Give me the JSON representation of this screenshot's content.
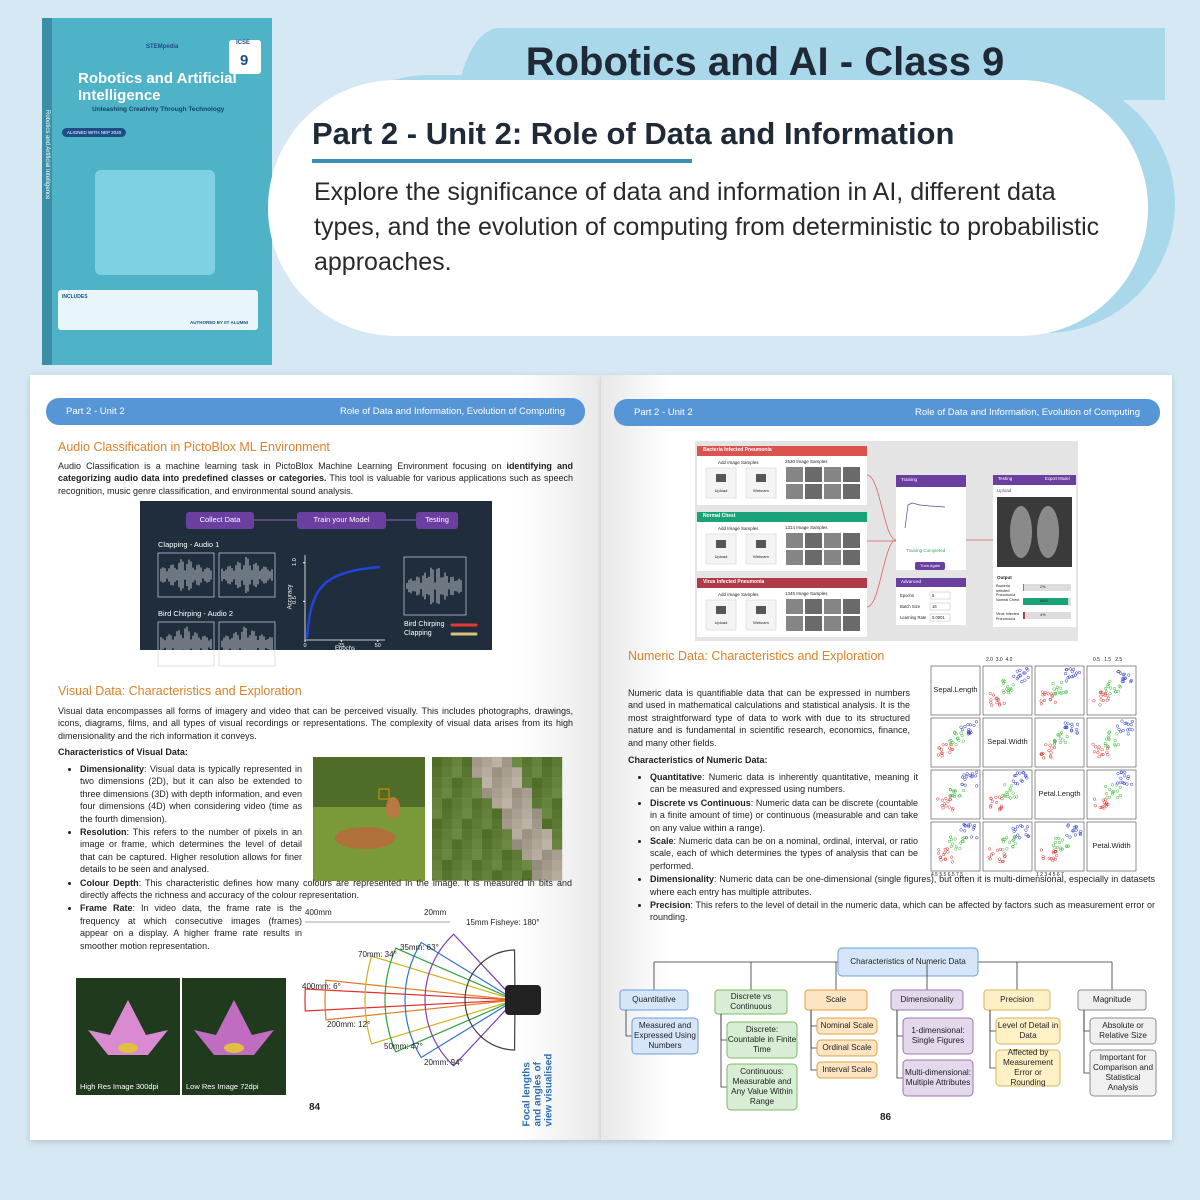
{
  "book_cover": {
    "brand": "STEMpedia",
    "board": "ICSE",
    "grade": "9",
    "title": "Robotics and Artificial Intelligence",
    "tagline": "Unleashing Creativity Through Technology",
    "badge": "ALIGNED WITH NEP 2020",
    "spine": "Robotics and Artificial Intelligence",
    "includes": "INCLUDES",
    "author": "AUTHORED BY IIT ALUMNI"
  },
  "banner": {
    "title": "Robotics and AI - Class 9",
    "subtitle": "Part 2 - Unit 2: Role of Data and Information",
    "description": "Explore the significance of data and information in AI, different data types, and the evolution of computing from deterministic to probabilistic approaches."
  },
  "left_page": {
    "header": {
      "unit": "Part 2 - Unit 2",
      "topic": "Role of Data and Information, Evolution of Computing"
    },
    "audio_section": {
      "title": "Audio Classification in PictoBlox ML Environment",
      "paragraph": {
        "before": "Audio Classification is a machine learning task in PictoBlox Machine Learning Environment focusing on ",
        "bold": "identifying and categorizing audio data into predefined classes or categories.",
        "after": " This tool is valuable for various applications such as speech recognition, music genre classification, and environmental sound analysis."
      },
      "diagram": {
        "steps": [
          "Collect Data",
          "Train your Model",
          "Testing"
        ],
        "samples": [
          "Clapping - Audio 1",
          "Bird Chirping - Audio 2"
        ],
        "y_label": "Accuracy",
        "x_label": "Epochs",
        "xlim": [
          0,
          55
        ],
        "ylim": [
          0,
          1.1
        ],
        "xticks": [
          0,
          25,
          50
        ],
        "yticks": [
          0.5,
          {
            "value": 1,
            "label": "1.0"
          }
        ],
        "legend": [
          {
            "name": "Bird Chirping",
            "color": "#e53935"
          },
          {
            "name": "Clapping",
            "color": "#d9c27a"
          }
        ]
      }
    },
    "visual_section": {
      "title": "Visual Data: Characteristics and Exploration",
      "paragraph": "Visual data encompasses all forms of imagery and video that can be perceived visually. This includes photographs, drawings, icons, diagrams, films, and all types of visual recordings or representations. The complexity of visual data arises from its high dimensionality and the rich information it conveys.",
      "heading": "Characteristics of Visual Data:",
      "bullets": [
        {
          "term": "Dimensionality",
          "text": ": Visual data is typically represented in two dimensions (2D), but it can also be extended to three dimensions (3D) with depth information, and even four dimensions (4D) when considering video (time as the fourth dimension)."
        },
        {
          "term": "Resolution",
          "text": ": This refers to the number of pixels in an image or frame, which determines the level of detail that can be captured. Higher resolution allows for finer details to be seen and analysed."
        },
        {
          "term": "Colour Depth",
          "text": ": This characteristic defines how many colours are represented in the image. It is measured in bits and directly affects the richness and accuracy of the colour representation."
        },
        {
          "term": "Frame Rate",
          "text": ": In video data, the frame rate is the frequency at which consecutive images (frames) appear on a display. A higher frame rate results in smoother motion representation."
        }
      ],
      "lens_labels": [
        "400mm",
        "20mm",
        "15mm Fisheye: 180°",
        "35mm: 63°",
        "70mm: 34°",
        "400mm: 6°",
        "200mm: 12°",
        "50mm: 47°",
        "20mm: 94°",
        "Focal lengths and angles of view visualised"
      ],
      "image_captions": [
        "High Res Image 300dpi",
        "Low Res Image 72dpi"
      ]
    },
    "page_number": "84"
  },
  "right_page": {
    "header": {
      "unit": "Part 2 - Unit 2",
      "topic": "Role of Data and Information, Evolution of Computing"
    },
    "pictoblox": {
      "classes": [
        {
          "name": "Bacteria Infected Pneumonia",
          "samples": "2530 Image Samples",
          "color": "#d9534f"
        },
        {
          "name": "Normal Chest",
          "samples": "1314 Image Samples",
          "color": "#1aa37a"
        },
        {
          "name": "Virus Infected Pneumonia",
          "samples": "1345 Image Samples",
          "color": "#b03a48"
        }
      ],
      "add": "Add Image Samples",
      "upload": "Upload",
      "webcam": "Webcam",
      "training": "Training",
      "training_done": "Training Completed",
      "train_again": "Train Again",
      "advanced": "Advanced",
      "params": [
        {
          "name": "Epochs",
          "value": "5"
        },
        {
          "name": "Batch Size",
          "value": "16"
        },
        {
          "name": "Learning Rate",
          "value": "0.0001"
        }
      ],
      "testing": "Testing",
      "export": "Export Model",
      "test_upload": "Upload",
      "output": "Output",
      "results": [
        {
          "name": "Bacteria Infected Pneumonia",
          "value": 2,
          "label": "2%"
        },
        {
          "name": "Normal Chest",
          "value": 94,
          "label": "94%"
        },
        {
          "name": "Virus Infected Pneumonia",
          "value": 4,
          "label": "4%"
        }
      ]
    },
    "numeric_section": {
      "title": "Numeric Data: Characteristics and Exploration",
      "paragraph": "Numeric data is quantifiable data that can be expressed in numbers and used in mathematical calculations and statistical analysis. It is the most straightforward type of data to work with due to its structured nature and is fundamental in scientific research, economics, finance, and many other fields.",
      "heading": "Characteristics of Numeric Data:",
      "bullets": [
        {
          "term": "Quantitative",
          "text": ": Numeric data is inherently quantitative, meaning it can be measured and expressed using numbers."
        },
        {
          "term": "Discrete vs Continuous",
          "text": ": Numeric data can be discrete (countable in a finite amount of time) or continuous (measurable and can take on any value within a range)."
        },
        {
          "term": "Scale",
          "text": ": Numeric data can be on a nominal, ordinal, interval, or ratio scale, each of which determines the types of analysis that can be performed."
        },
        {
          "term": "Dimensionality",
          "text": ": Numeric data can be one-dimensional (single figures), but often it is multi-dimensional, especially in datasets where each entry has multiple attributes."
        },
        {
          "term": "Precision",
          "text": ": This refers to the level of detail in the numeric data, which can be affected by factors such as measurement error or rounding."
        }
      ],
      "scatter_matrix": {
        "variables": [
          "Sepal.Length",
          "Sepal.Width",
          "Petal.Length",
          "Petal.Width"
        ],
        "top_ticks": [
          "2.0  3.0  4.0",
          "0.5   1.5   2.5"
        ],
        "bottom_ticks": [
          "4.5 5.5 6.5 7.5",
          "1 2 3 4 5 6 7"
        ]
      }
    },
    "tree": {
      "root": "Characteristics of Numeric Data",
      "branches": [
        {
          "name": "Quantitative",
          "fill": "#d6e6f8",
          "stroke": "#6c9fd6",
          "children": [
            "Measured and Expressed Using Numbers"
          ]
        },
        {
          "name": "Discrete vs Continuous",
          "fill": "#d7eed5",
          "stroke": "#7fb865",
          "children": [
            "Discrete: Countable in Finite Time",
            "Continuous: Measurable and Any Value Within Range"
          ]
        },
        {
          "name": "Scale",
          "fill": "#fde4c2",
          "stroke": "#e0a040",
          "children": [
            "Nominal Scale",
            "Ordinal Scale",
            "Interval Scale"
          ]
        },
        {
          "name": "Dimensionality",
          "fill": "#e4d8ec",
          "stroke": "#9a78ad",
          "children": [
            "1-dimensional: Single Figures",
            "Multi-dimensional: Multiple Attributes"
          ]
        },
        {
          "name": "Precision",
          "fill": "#fff0c6",
          "stroke": "#d6b656",
          "children": [
            "Level of Detail in Data",
            "Affected by Measurement Error or Rounding"
          ]
        },
        {
          "name": "Magnitude",
          "fill": "#f0f0f0",
          "stroke": "#8c8c8c",
          "children": [
            "Absolute or Relative Size",
            "Important for Comparison and Statistical Analysis"
          ]
        }
      ]
    },
    "page_number": "86"
  }
}
